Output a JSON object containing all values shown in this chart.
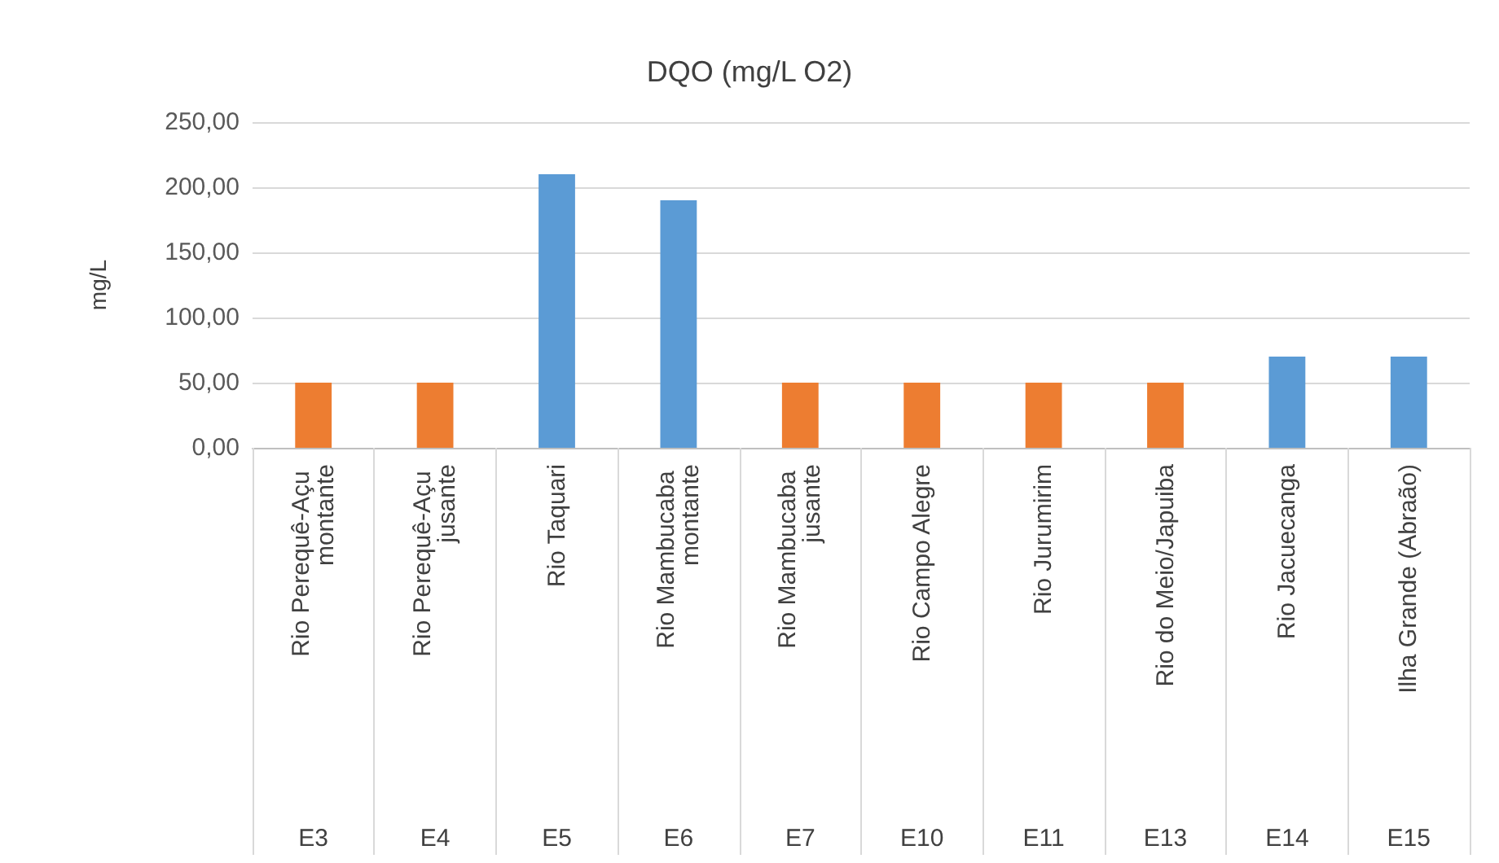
{
  "chart_data": {
    "type": "bar",
    "title": "DQO (mg/L O2)",
    "ylabel": "mg/L",
    "categories": [
      "Rio Perequê-Açu montante",
      "Rio Perequê-Açu jusante",
      "Rio Taquari",
      "Rio Mambucaba montante",
      "Rio Mambucaba jusante",
      "Rio Campo Alegre",
      "Rio Jurumirim",
      "Rio do Meio/Japuiba",
      "Rio Jacuecanga",
      "Ilha Grande (Abraão)"
    ],
    "values": [
      50,
      50,
      210,
      190,
      50,
      50,
      50,
      50,
      70,
      70
    ],
    "colors": [
      "#ed7d31",
      "#ed7d31",
      "#5b9bd5",
      "#5b9bd5",
      "#ed7d31",
      "#ed7d31",
      "#ed7d31",
      "#ed7d31",
      "#5b9bd5",
      "#5b9bd5"
    ],
    "ylim": [
      0,
      250
    ],
    "yticks": [
      {
        "value": 0,
        "label": "0,00"
      },
      {
        "value": 50,
        "label": "50,00"
      },
      {
        "value": 100,
        "label": "100,00"
      },
      {
        "value": 150,
        "label": "150,00"
      },
      {
        "value": 200,
        "label": "200,00"
      },
      {
        "value": 250,
        "label": "250,00"
      }
    ],
    "grid": "y",
    "annotations": [
      "E3",
      "E4",
      "E5",
      "E6",
      "E7",
      "E10",
      "E11",
      "E13",
      "E14",
      "E15"
    ]
  }
}
